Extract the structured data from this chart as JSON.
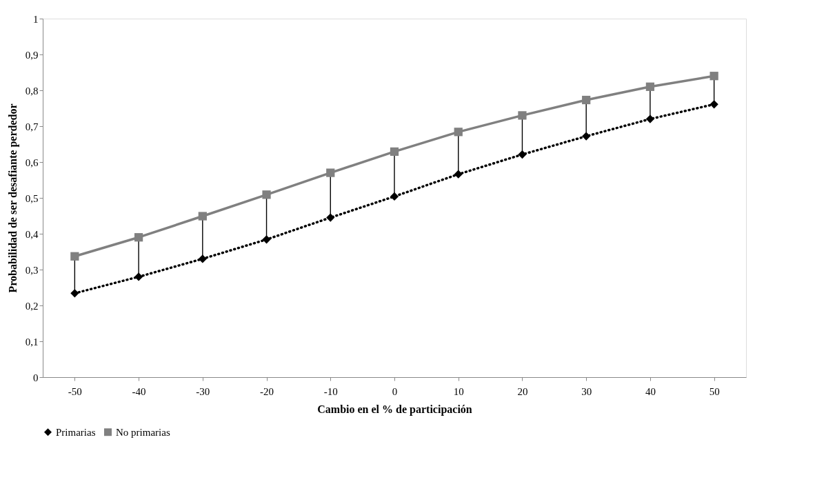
{
  "chart_data": {
    "type": "line",
    "xlabel": "Cambio en el % de participación",
    "ylabel": "Probabilidad de ser desafiante perdedor",
    "categories": [
      "-50",
      "-40",
      "-30",
      "-20",
      "-10",
      "0",
      "10",
      "20",
      "30",
      "40",
      "50"
    ],
    "series": [
      {
        "name": "Primarias",
        "color": "#000000",
        "marker": "diamond",
        "line_style": "dotted",
        "values": [
          0.234,
          0.28,
          0.33,
          0.384,
          0.445,
          0.504,
          0.566,
          0.621,
          0.672,
          0.72,
          0.761
        ]
      },
      {
        "name": "No primarias",
        "color": "#808080",
        "marker": "square",
        "line_style": "solid",
        "values": [
          0.337,
          0.39,
          0.449,
          0.509,
          0.57,
          0.629,
          0.684,
          0.73,
          0.773,
          0.81,
          0.84
        ],
        "errors": [
          [
            0.234,
            0.337
          ],
          [
            0.28,
            0.39
          ],
          [
            0.33,
            0.449
          ],
          [
            0.384,
            0.509
          ],
          [
            0.445,
            0.57
          ],
          [
            0.504,
            0.629
          ],
          [
            0.566,
            0.684
          ],
          [
            0.621,
            0.73
          ],
          [
            0.672,
            0.773
          ],
          [
            0.72,
            0.81
          ],
          [
            0.761,
            0.84
          ]
        ]
      }
    ],
    "ylim": [
      0,
      1
    ],
    "yticks": [
      0,
      {
        "value": 0.1,
        "label": "0,1"
      },
      {
        "value": 0.2,
        "label": "0,2"
      },
      {
        "value": 0.3,
        "label": "0,3"
      },
      {
        "value": 0.4,
        "label": "0,4"
      },
      {
        "value": 0.5,
        "label": "0,5"
      },
      {
        "value": 0.6,
        "label": "0,6"
      },
      {
        "value": 0.7,
        "label": "0,7"
      },
      {
        "value": 0.8,
        "label": "0,8"
      },
      {
        "value": 0.9,
        "label": "0,9"
      },
      1
    ],
    "grid": false,
    "legend": "bottom"
  }
}
